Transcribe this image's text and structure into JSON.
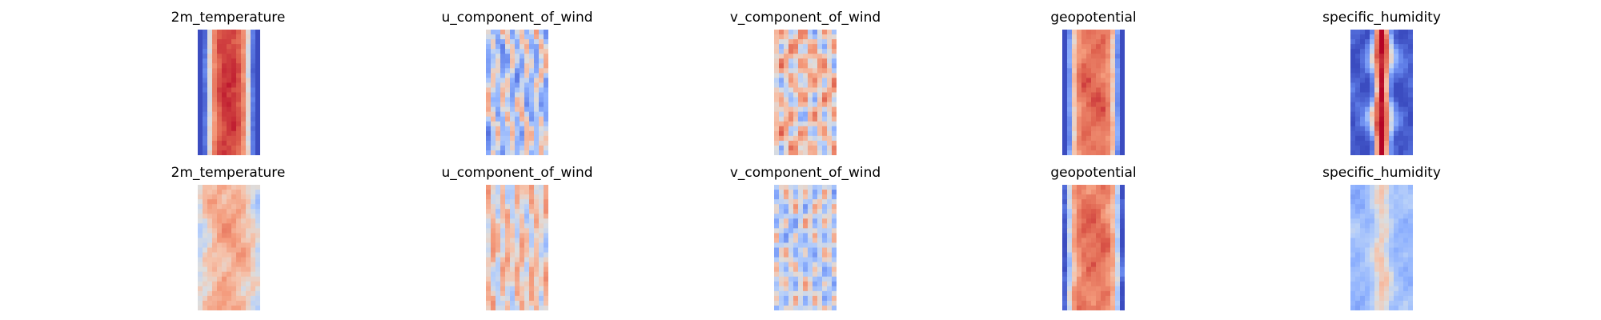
{
  "chart_data": {
    "type": "heatmap",
    "layout": "2 rows x 5 columns of field maps, no axes, no colorbar",
    "colormap": {
      "name": "coolwarm",
      "low": "#3b4cc0",
      "mid": "#dddddd",
      "high": "#b40426"
    },
    "rows": [
      {
        "panels": [
          {
            "title": "2m_temperature",
            "pattern": "warm-core",
            "variable": "2m_temperature"
          },
          {
            "title": "u_component_of_wind",
            "pattern": "streaky-cool",
            "variable": "u_component_of_wind"
          },
          {
            "title": "v_component_of_wind",
            "pattern": "eddies-warm",
            "variable": "v_component_of_wind"
          },
          {
            "title": "geopotential",
            "pattern": "warm-core-wide",
            "variable": "geopotential"
          },
          {
            "title": "specific_humidity",
            "pattern": "narrow-moist-core",
            "variable": "specific_humidity"
          }
        ]
      },
      {
        "panels": [
          {
            "title": "2m_temperature",
            "pattern": "mild-warm",
            "variable": "2m_temperature"
          },
          {
            "title": "u_component_of_wind",
            "pattern": "mild-streaks",
            "variable": "u_component_of_wind"
          },
          {
            "title": "v_component_of_wind",
            "pattern": "eddies-cool",
            "variable": "v_component_of_wind"
          },
          {
            "title": "geopotential",
            "pattern": "warm-core-wide-2",
            "variable": "geopotential"
          },
          {
            "title": "specific_humidity",
            "pattern": "faint-core",
            "variable": "specific_humidity"
          }
        ]
      }
    ]
  }
}
